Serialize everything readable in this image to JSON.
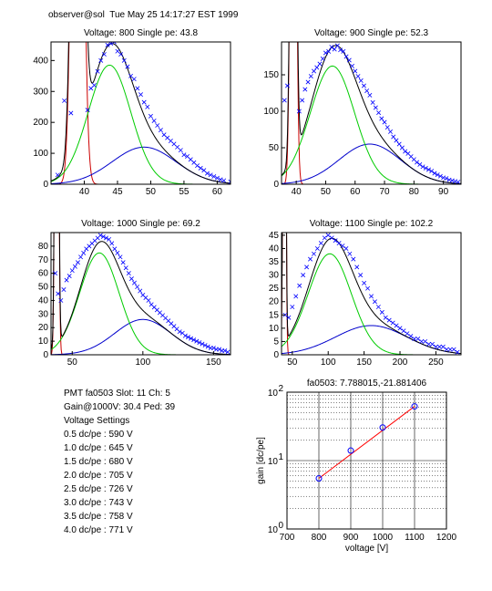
{
  "header": "observer@sol  Tue May 25 14:17:27 EST 1999",
  "colors": {
    "data": "#0000ff",
    "total": "#000000",
    "gauss": "#00cc00",
    "second": "#0000cc",
    "pedestal": "#cc0000",
    "fitline": "#ff0000",
    "point": "#0000ff"
  },
  "info": {
    "pmt_line": "PMT fa0503 Slot: 11 Ch: 5",
    "gain_line": "Gain@1000V: 30.4 Ped: 39",
    "settings_title": "Voltage Settings",
    "settings": [
      "0.5 dc/pe : 590 V",
      "1.0 dc/pe : 645 V",
      "1.5 dc/pe : 680 V",
      "2.0 dc/pe : 705 V",
      "2.5 dc/pe : 726 V",
      "3.0 dc/pe : 743 V",
      "3.5 dc/pe : 758 V",
      "4.0 dc/pe : 771 V"
    ]
  },
  "chart_data": [
    {
      "type": "scatter",
      "title": "Voltage: 800 Single pe: 43.8",
      "xlim": [
        35,
        62
      ],
      "ylim": [
        0,
        460
      ],
      "xticks": [
        40,
        45,
        50,
        55,
        60
      ],
      "yticks": [
        0,
        100,
        200,
        300,
        400
      ],
      "pedestal": {
        "center": 39,
        "sigma": 0.7,
        "amp": 2500
      },
      "peak1": {
        "center": 43.8,
        "sigma": 3.2,
        "amp": 385
      },
      "peak2": {
        "center": 49,
        "sigma": 4.8,
        "amp": 120
      },
      "points": [
        [
          36,
          30
        ],
        [
          37,
          270
        ],
        [
          38,
          230
        ],
        [
          40.5,
          240
        ],
        [
          41,
          310
        ],
        [
          41.5,
          320
        ],
        [
          42,
          365
        ],
        [
          42.5,
          400
        ],
        [
          43,
          420
        ],
        [
          43.5,
          450
        ],
        [
          44,
          455
        ],
        [
          44.5,
          460
        ],
        [
          45,
          430
        ],
        [
          45.5,
          420
        ],
        [
          46,
          400
        ],
        [
          46.5,
          380
        ],
        [
          47,
          350
        ],
        [
          47.5,
          340
        ],
        [
          48,
          310
        ],
        [
          48.5,
          290
        ],
        [
          49,
          265
        ],
        [
          49.5,
          250
        ],
        [
          50,
          220
        ],
        [
          50.5,
          205
        ],
        [
          51,
          190
        ],
        [
          51.5,
          175
        ],
        [
          52,
          160
        ],
        [
          52.5,
          150
        ],
        [
          53,
          140
        ],
        [
          53.5,
          130
        ],
        [
          54,
          120
        ],
        [
          54.5,
          110
        ],
        [
          55,
          95
        ],
        [
          55.5,
          90
        ],
        [
          56,
          80
        ],
        [
          56.5,
          70
        ],
        [
          57,
          60
        ],
        [
          57.5,
          52
        ],
        [
          58,
          45
        ],
        [
          58.5,
          35
        ],
        [
          59,
          30
        ],
        [
          59.5,
          25
        ],
        [
          60,
          20
        ],
        [
          60.5,
          15
        ],
        [
          61,
          12
        ],
        [
          62,
          8
        ]
      ]
    },
    {
      "type": "scatter",
      "title": "Voltage: 900 Single pe: 52.3",
      "xlim": [
        35,
        96
      ],
      "ylim": [
        0,
        195
      ],
      "xticks": [
        40,
        50,
        60,
        70,
        80,
        90
      ],
      "yticks": [
        0,
        50,
        100,
        150
      ],
      "pedestal": {
        "center": 39,
        "sigma": 0.8,
        "amp": 1000
      },
      "peak1": {
        "center": 52.3,
        "sigma": 7.5,
        "amp": 162
      },
      "peak2": {
        "center": 65,
        "sigma": 10.5,
        "amp": 55
      },
      "points": [
        [
          36,
          115
        ],
        [
          37,
          135
        ],
        [
          41,
          100
        ],
        [
          42,
          115
        ],
        [
          43,
          130
        ],
        [
          44,
          140
        ],
        [
          45,
          148
        ],
        [
          46,
          155
        ],
        [
          47,
          160
        ],
        [
          48,
          165
        ],
        [
          49,
          172
        ],
        [
          50,
          180
        ],
        [
          51,
          182
        ],
        [
          52,
          188
        ],
        [
          53,
          185
        ],
        [
          54,
          190
        ],
        [
          55,
          184
        ],
        [
          56,
          182
        ],
        [
          57,
          175
        ],
        [
          58,
          170
        ],
        [
          59,
          162
        ],
        [
          60,
          155
        ],
        [
          61,
          148
        ],
        [
          62,
          142
        ],
        [
          63,
          135
        ],
        [
          64,
          128
        ],
        [
          65,
          122
        ],
        [
          66,
          112
        ],
        [
          67,
          105
        ],
        [
          68,
          98
        ],
        [
          69,
          90
        ],
        [
          70,
          85
        ],
        [
          71,
          78
        ],
        [
          72,
          72
        ],
        [
          73,
          65
        ],
        [
          74,
          60
        ],
        [
          75,
          55
        ],
        [
          76,
          50
        ],
        [
          77,
          45
        ],
        [
          78,
          42
        ],
        [
          79,
          38
        ],
        [
          80,
          34
        ],
        [
          81,
          30
        ],
        [
          82,
          27
        ],
        [
          83,
          24
        ],
        [
          84,
          22
        ],
        [
          85,
          20
        ],
        [
          86,
          18
        ],
        [
          87,
          15
        ],
        [
          88,
          13
        ],
        [
          89,
          11
        ],
        [
          90,
          9
        ],
        [
          91,
          8
        ],
        [
          92,
          6
        ],
        [
          93,
          5
        ],
        [
          94,
          4
        ],
        [
          95,
          3
        ]
      ]
    },
    {
      "type": "scatter",
      "title": "Voltage: 1000 Single pe: 69.2",
      "xlim": [
        35,
        162
      ],
      "ylim": [
        0,
        90
      ],
      "xticks": [
        50,
        100,
        150
      ],
      "yticks": [
        0,
        10,
        20,
        30,
        40,
        50,
        60,
        70,
        80
      ],
      "pedestal": {
        "center": 39,
        "sigma": 1,
        "amp": 600
      },
      "peak1": {
        "center": 69.2,
        "sigma": 14,
        "amp": 75
      },
      "peak2": {
        "center": 100,
        "sigma": 20,
        "amp": 26
      },
      "points": [
        [
          38,
          60
        ],
        [
          40,
          45
        ],
        [
          42,
          40
        ],
        [
          44,
          48
        ],
        [
          46,
          55
        ],
        [
          48,
          58
        ],
        [
          50,
          62
        ],
        [
          52,
          65
        ],
        [
          54,
          68
        ],
        [
          56,
          72
        ],
        [
          58,
          75
        ],
        [
          60,
          78
        ],
        [
          62,
          80
        ],
        [
          64,
          82
        ],
        [
          66,
          84
        ],
        [
          68,
          86
        ],
        [
          70,
          88
        ],
        [
          72,
          87
        ],
        [
          74,
          86
        ],
        [
          76,
          85
        ],
        [
          78,
          82
        ],
        [
          80,
          78
        ],
        [
          82,
          75
        ],
        [
          84,
          72
        ],
        [
          86,
          68
        ],
        [
          88,
          64
        ],
        [
          90,
          60
        ],
        [
          92,
          56
        ],
        [
          94,
          53
        ],
        [
          96,
          50
        ],
        [
          98,
          47
        ],
        [
          100,
          44
        ],
        [
          102,
          42
        ],
        [
          104,
          40
        ],
        [
          106,
          37
        ],
        [
          108,
          35
        ],
        [
          110,
          33
        ],
        [
          112,
          31
        ],
        [
          114,
          29
        ],
        [
          116,
          27
        ],
        [
          118,
          25
        ],
        [
          120,
          23
        ],
        [
          122,
          21
        ],
        [
          124,
          19
        ],
        [
          126,
          17
        ],
        [
          128,
          16
        ],
        [
          130,
          14
        ],
        [
          132,
          13
        ],
        [
          134,
          12
        ],
        [
          136,
          11
        ],
        [
          138,
          10
        ],
        [
          140,
          9
        ],
        [
          142,
          8
        ],
        [
          144,
          7
        ],
        [
          146,
          6
        ],
        [
          148,
          5
        ],
        [
          150,
          5
        ],
        [
          152,
          4
        ],
        [
          154,
          4
        ],
        [
          156,
          3
        ],
        [
          158,
          3
        ],
        [
          160,
          2
        ]
      ]
    },
    {
      "type": "scatter",
      "title": "Voltage: 1100 Single pe: 102.2",
      "xlim": [
        35,
        285
      ],
      "ylim": [
        0,
        46
      ],
      "xticks": [
        50,
        100,
        150,
        200,
        250
      ],
      "yticks": [
        0,
        5,
        10,
        15,
        20,
        25,
        30,
        35,
        40,
        45
      ],
      "pedestal": {
        "center": 39,
        "sigma": 1.5,
        "amp": 300
      },
      "peak1": {
        "center": 102.2,
        "sigma": 30,
        "amp": 38
      },
      "peak2": {
        "center": 160,
        "sigma": 50,
        "amp": 11
      },
      "points": [
        [
          40,
          15
        ],
        [
          45,
          14
        ],
        [
          50,
          18
        ],
        [
          55,
          22
        ],
        [
          60,
          26
        ],
        [
          65,
          30
        ],
        [
          70,
          33
        ],
        [
          75,
          36
        ],
        [
          80,
          38
        ],
        [
          85,
          40
        ],
        [
          90,
          42
        ],
        [
          95,
          44
        ],
        [
          100,
          45
        ],
        [
          105,
          44
        ],
        [
          110,
          43
        ],
        [
          115,
          42
        ],
        [
          120,
          41
        ],
        [
          125,
          40
        ],
        [
          130,
          38
        ],
        [
          135,
          36
        ],
        [
          140,
          33
        ],
        [
          145,
          30
        ],
        [
          150,
          27
        ],
        [
          155,
          25
        ],
        [
          160,
          22
        ],
        [
          165,
          20
        ],
        [
          170,
          18
        ],
        [
          175,
          16
        ],
        [
          180,
          14
        ],
        [
          185,
          13
        ],
        [
          190,
          12
        ],
        [
          195,
          11
        ],
        [
          200,
          10
        ],
        [
          205,
          9
        ],
        [
          210,
          8
        ],
        [
          215,
          7
        ],
        [
          220,
          6
        ],
        [
          225,
          6
        ],
        [
          230,
          5
        ],
        [
          235,
          5
        ],
        [
          240,
          4
        ],
        [
          245,
          4
        ],
        [
          250,
          3
        ],
        [
          255,
          3
        ],
        [
          260,
          3
        ],
        [
          265,
          2
        ],
        [
          270,
          2
        ],
        [
          275,
          2
        ],
        [
          280,
          1
        ]
      ]
    },
    {
      "type": "line",
      "title": "fa0503: 7.788015,-21.881406",
      "xlabel": "voltage [V]",
      "ylabel": "gain [dc/pe]",
      "xlim": [
        700,
        1200
      ],
      "ylim": [
        1,
        100
      ],
      "yscale": "log",
      "xticks": [
        700,
        800,
        900,
        1000,
        1100,
        1200
      ],
      "yticks": [
        1,
        10,
        100
      ],
      "ytick_labels": [
        {
          "base": "10",
          "exp": "0"
        },
        {
          "base": "10",
          "exp": "1"
        },
        {
          "base": "10",
          "exp": "2"
        }
      ],
      "grid": true,
      "points": [
        [
          800,
          5.5
        ],
        [
          900,
          14
        ],
        [
          1000,
          30.4
        ],
        [
          1100,
          62
        ]
      ],
      "fit": {
        "slope": 7.788015,
        "intercept": -21.881406
      }
    }
  ]
}
